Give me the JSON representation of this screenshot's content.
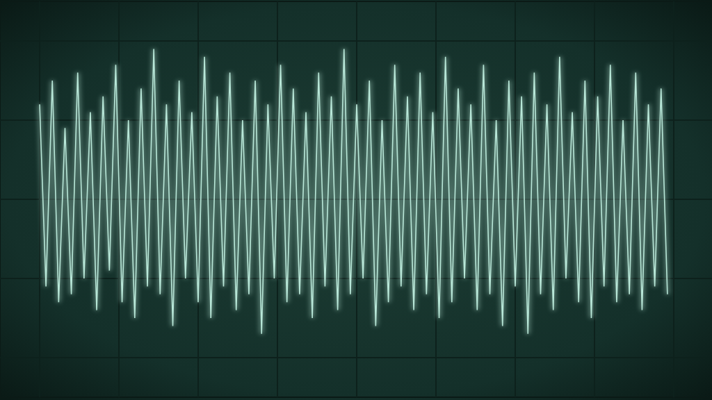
{
  "chart_data": {
    "type": "line",
    "color": "#bfeede",
    "grid": true,
    "tick_labels": false,
    "xlim": [
      -4.5,
      4.5
    ],
    "xticks": [
      -4,
      -3,
      -2,
      -1,
      0,
      1,
      2,
      3,
      4
    ],
    "ylim": [
      -2.5,
      2.5
    ],
    "yticks": [
      -2,
      -1,
      0,
      1,
      2
    ],
    "x": [
      -4,
      -3.92,
      -3.84,
      -3.76,
      -3.68,
      -3.6,
      -3.52,
      -3.44,
      -3.36,
      -3.28,
      -3.2,
      -3.12,
      -3.04,
      -2.96,
      -2.88,
      -2.8,
      -2.72,
      -2.64,
      -2.56,
      -2.48,
      -2.4,
      -2.32,
      -2.24,
      -2.16,
      -2.08,
      -2,
      -1.92,
      -1.84,
      -1.76,
      -1.68,
      -1.6,
      -1.52,
      -1.44,
      -1.36,
      -1.28,
      -1.2,
      -1.12,
      -1.04,
      -0.96,
      -0.88,
      -0.8,
      -0.72,
      -0.64,
      -0.56,
      -0.48,
      -0.4,
      -0.32,
      -0.24,
      -0.16,
      -0.08,
      0,
      0.08,
      0.16,
      0.24,
      0.32,
      0.4,
      0.48,
      0.56,
      0.64,
      0.72,
      0.8,
      0.88,
      0.96,
      1.04,
      1.12,
      1.2,
      1.28,
      1.36,
      1.44,
      1.52,
      1.6,
      1.68,
      1.76,
      1.84,
      1.92,
      2,
      2.08,
      2.16,
      2.24,
      2.32,
      2.4,
      2.48,
      2.56,
      2.64,
      2.72,
      2.8,
      2.88,
      2.96,
      3.04,
      3.12,
      3.2,
      3.28,
      3.36,
      3.44,
      3.52,
      3.6,
      3.68,
      3.76,
      3.84,
      3.92
    ],
    "values": [
      1.2,
      -1.1,
      1.5,
      -1.3,
      0.9,
      -1.2,
      1.6,
      -1.0,
      1.1,
      -1.4,
      1.3,
      -0.9,
      1.7,
      -1.3,
      1.0,
      -1.5,
      1.4,
      -1.1,
      1.9,
      -1.2,
      1.2,
      -1.6,
      1.5,
      -1.0,
      1.1,
      -1.3,
      1.8,
      -1.5,
      1.3,
      -1.1,
      1.6,
      -1.4,
      1.0,
      -1.2,
      1.5,
      -1.7,
      1.2,
      -1.0,
      1.7,
      -1.3,
      1.4,
      -1.2,
      1.1,
      -1.5,
      1.6,
      -1.1,
      1.3,
      -1.4,
      1.9,
      -1.2,
      1.2,
      -1.0,
      1.5,
      -1.6,
      1.0,
      -1.3,
      1.7,
      -1.1,
      1.3,
      -1.4,
      1.6,
      -1.2,
      1.1,
      -1.5,
      1.8,
      -1.3,
      1.4,
      -1.0,
      1.2,
      -1.4,
      1.7,
      -1.2,
      1.0,
      -1.6,
      1.5,
      -1.1,
      1.3,
      -1.7,
      1.6,
      -1.2,
      1.2,
      -1.4,
      1.8,
      -1.0,
      1.1,
      -1.3,
      1.5,
      -1.5,
      1.3,
      -1.1,
      1.7,
      -1.3,
      1.0,
      -1.2,
      1.6,
      -1.4,
      1.2,
      -1.1,
      1.4,
      -1.2
    ]
  }
}
